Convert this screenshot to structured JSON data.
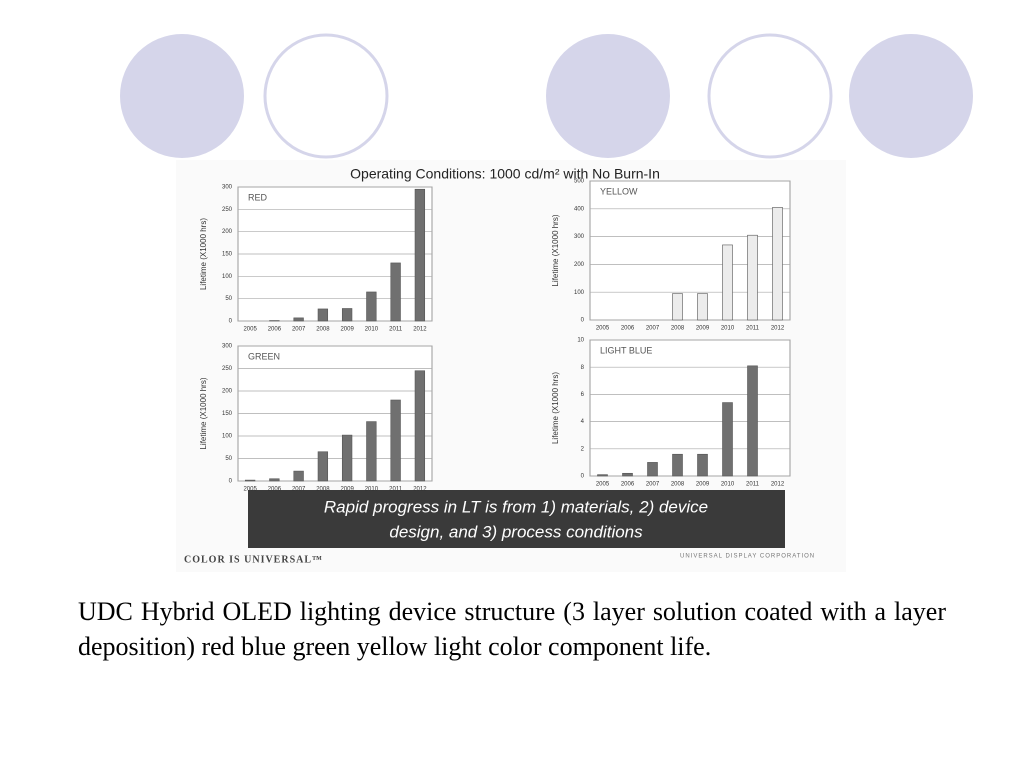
{
  "heading": "Operating Conditions:  1000 cd/m² with No Burn-In",
  "banner": [
    "Rapid progress in LT is from 1) materials, 2) device",
    "design, and  3) process conditions"
  ],
  "footer_left": "COLOR IS UNIVERSAL™",
  "footer_right": "UNIVERSAL DISPLAY CORPORATION",
  "caption": "UDC Hybrid OLED lighting device structure (3 layer solution coated with a layer deposition) red blue green yellow light color component life.",
  "chart_data": [
    {
      "type": "bar",
      "title": "RED",
      "y_label": "Lifetime (X1000 hrs)",
      "categories": [
        "2005",
        "2006",
        "2007",
        "2008",
        "2009",
        "2010",
        "2011",
        "2012"
      ],
      "values": [
        0,
        1,
        7,
        27,
        28,
        65,
        130,
        295
      ],
      "color": "#707070",
      "ylim": [
        0,
        300
      ],
      "yticks": [
        0,
        50,
        100,
        150,
        200,
        250,
        300
      ],
      "grid": true
    },
    {
      "type": "bar",
      "title": "YELLOW",
      "y_label": "Lifetime (X1000 hrs)",
      "categories": [
        "2005",
        "2006",
        "2007",
        "2008",
        "2009",
        "2010",
        "2011",
        "2012"
      ],
      "values": [
        0,
        0,
        0,
        95,
        95,
        270,
        305,
        405
      ],
      "color": "#ececec",
      "ylim": [
        0,
        500
      ],
      "yticks": [
        0,
        100,
        200,
        300,
        400,
        500
      ],
      "grid": true
    },
    {
      "type": "bar",
      "title": "GREEN",
      "y_label": "Lifetime (X1000 hrs)",
      "categories": [
        "2005",
        "2006",
        "2007",
        "2008",
        "2009",
        "2010",
        "2011",
        "2012"
      ],
      "values": [
        2,
        5,
        22,
        65,
        102,
        132,
        180,
        245
      ],
      "color": "#707070",
      "ylim": [
        0,
        300
      ],
      "yticks": [
        0,
        50,
        100,
        150,
        200,
        250,
        300
      ],
      "grid": true
    },
    {
      "type": "bar",
      "title": "LIGHT BLUE",
      "y_label": "Lifetime (X1000 hrs)",
      "categories": [
        "2005",
        "2006",
        "2007",
        "2008",
        "2009",
        "2010",
        "2011",
        "2012"
      ],
      "values": [
        0.1,
        0.2,
        1.0,
        1.6,
        1.6,
        5.4,
        8.1,
        null
      ],
      "color": "#707070",
      "ylim": [
        0,
        10
      ],
      "yticks": [
        0,
        2,
        4,
        6,
        8,
        10
      ],
      "grid": true
    }
  ]
}
